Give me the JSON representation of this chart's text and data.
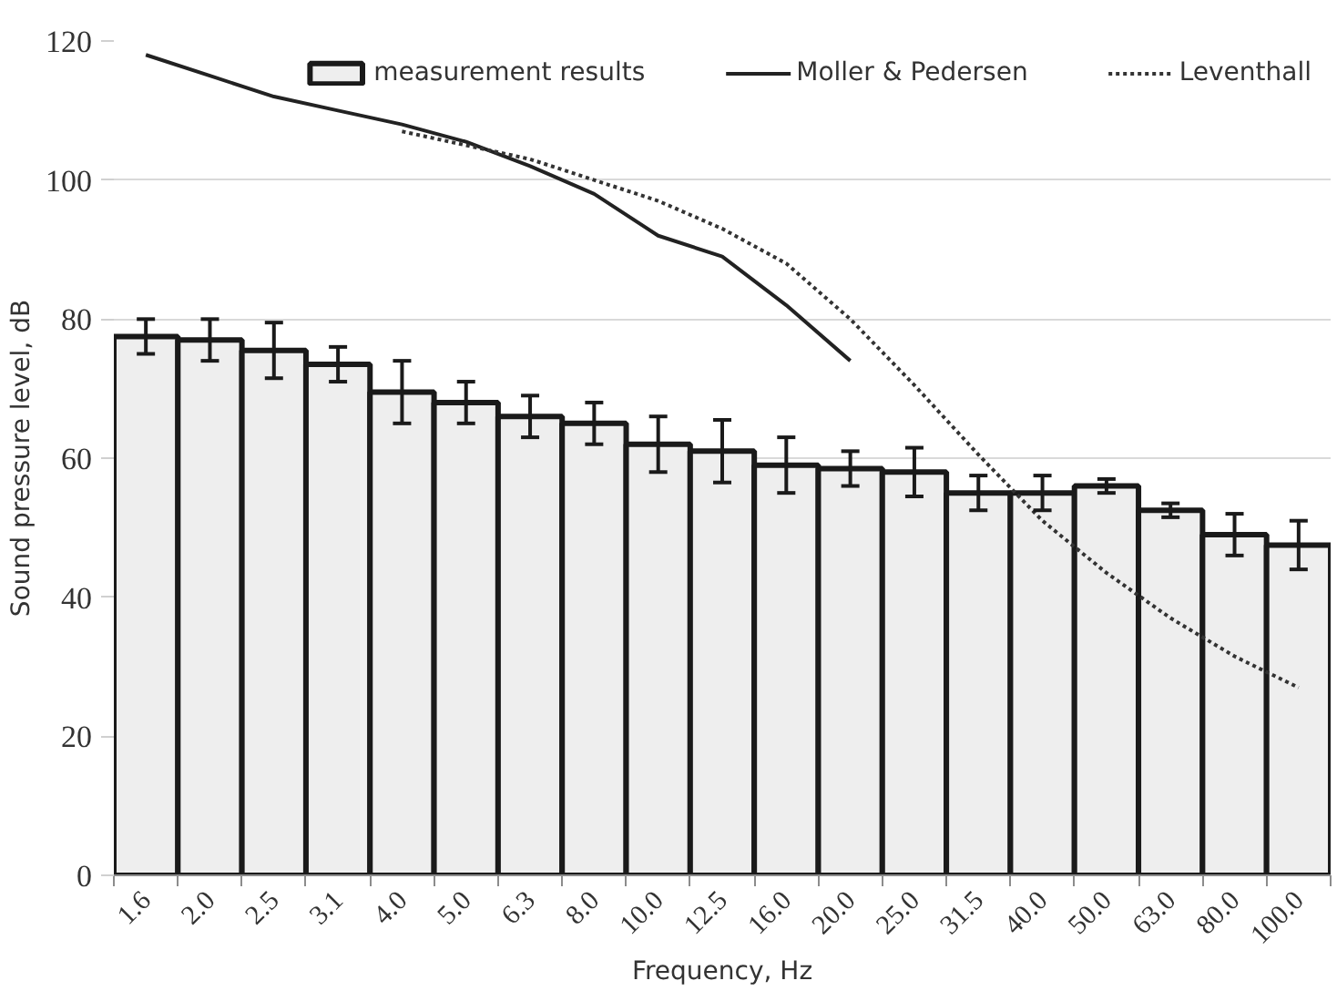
{
  "chart_data": {
    "type": "bar",
    "xlabel": "Frequency, Hz",
    "ylabel": "Sound pressure level, dB",
    "categories": [
      "1.6",
      "2.0",
      "2.5",
      "3.1",
      "4.0",
      "5.0",
      "6.3",
      "8.0",
      "10.0",
      "12.5",
      "16.0",
      "20.0",
      "25.0",
      "31.5",
      "40.0",
      "50.0",
      "63.0",
      "80.0",
      "100.0"
    ],
    "series": [
      {
        "name": "measurement results",
        "color": "#eeeeee",
        "values": [
          77.5,
          77,
          75.5,
          73.5,
          69.5,
          68,
          66,
          65,
          62,
          61,
          59,
          58.5,
          58,
          55,
          55,
          56,
          52.5,
          49,
          47.5
        ],
        "errors": [
          2.5,
          3,
          4,
          2.5,
          4.5,
          3,
          3,
          3,
          4,
          4.5,
          4,
          2.5,
          3.5,
          2.5,
          2.5,
          1,
          1,
          3,
          3.5
        ]
      },
      {
        "name": "Moller & Pedersen",
        "type": "line",
        "color": "#222222",
        "line_style": "solid",
        "values": [
          118,
          115,
          112,
          110,
          108,
          105.5,
          102,
          98,
          92,
          89,
          82,
          74,
          null,
          null,
          null,
          null,
          null,
          null,
          null
        ]
      },
      {
        "name": "Leventhall",
        "type": "line",
        "color": "#333333",
        "line_style": "dotted",
        "values": [
          null,
          null,
          null,
          null,
          107,
          105,
          103,
          100,
          97,
          93,
          88,
          80,
          70.5,
          60.5,
          51,
          43.5,
          37,
          31.5,
          27
        ]
      }
    ],
    "ylim": [
      0,
      120
    ],
    "yticks": [
      0,
      20,
      40,
      60,
      80,
      100,
      120
    ],
    "grid": "y",
    "legend": "top right"
  }
}
